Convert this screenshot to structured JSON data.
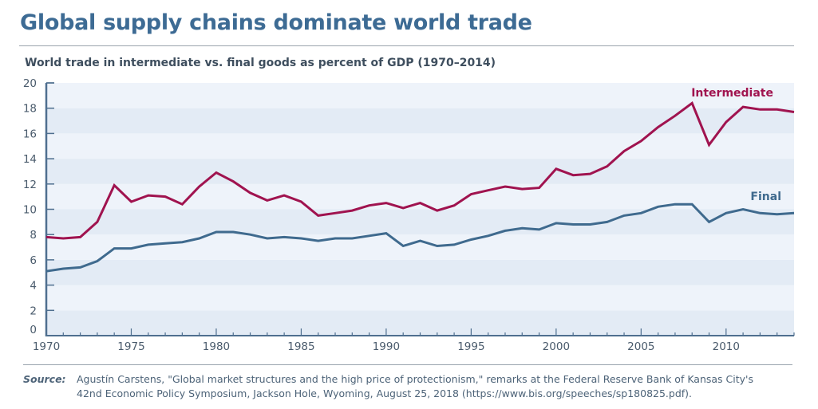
{
  "header": {
    "title": "Global supply chains dominate world trade",
    "subtitle": "World trade in intermediate vs. final goods as percent of GDP (1970–2014)"
  },
  "colors": {
    "title": "#3d6b94",
    "intermediate": "#a0134f",
    "final": "#3f6a8e",
    "axis": "#4f6f8f",
    "band_light": "#eef3fa",
    "band_dark": "#e3ebf5"
  },
  "footer": {
    "source_label": "Source:",
    "source_line1": "Agustín Carstens, \"Global market structures and the high price of protectionism,\" remarks at the Federal Reserve Bank of Kansas City's",
    "source_line2": "42nd Economic Policy Symposium, Jackson Hole, Wyoming, August 25, 2018 (https://www.bis.org/speeches/sp180825.pdf)."
  },
  "chart_data": {
    "type": "line",
    "title": "World trade in intermediate vs. final goods as percent of GDP (1970–2014)",
    "xlabel": "",
    "ylabel": "",
    "xlim": [
      1970,
      2014
    ],
    "ylim": [
      0,
      20
    ],
    "x_ticks": [
      1970,
      1975,
      1980,
      1985,
      1990,
      1995,
      2000,
      2005,
      2010
    ],
    "y_ticks": [
      0,
      2,
      4,
      6,
      8,
      10,
      12,
      14,
      16,
      18,
      20
    ],
    "grid": "alternating horizontal bands",
    "legend": "inline labels at right end of lines",
    "x": [
      1970,
      1971,
      1972,
      1973,
      1974,
      1975,
      1976,
      1977,
      1978,
      1979,
      1980,
      1981,
      1982,
      1983,
      1984,
      1985,
      1986,
      1987,
      1988,
      1989,
      1990,
      1991,
      1992,
      1993,
      1994,
      1995,
      1996,
      1997,
      1998,
      1999,
      2000,
      2001,
      2002,
      2003,
      2004,
      2005,
      2006,
      2007,
      2008,
      2009,
      2010,
      2011,
      2012,
      2013,
      2014
    ],
    "series": [
      {
        "name": "Intermediate",
        "values": [
          7.8,
          7.7,
          7.8,
          9.0,
          11.9,
          10.6,
          11.1,
          11.0,
          10.4,
          11.8,
          12.9,
          12.2,
          11.3,
          10.7,
          11.1,
          10.6,
          9.5,
          9.7,
          9.9,
          10.3,
          10.5,
          10.1,
          10.5,
          9.9,
          10.3,
          11.2,
          11.5,
          11.8,
          11.6,
          11.7,
          13.2,
          12.7,
          12.8,
          13.4,
          14.6,
          15.4,
          16.5,
          17.4,
          18.4,
          15.1,
          16.9,
          18.1,
          17.9,
          17.9,
          17.7
        ]
      },
      {
        "name": "Final",
        "values": [
          5.1,
          5.3,
          5.4,
          5.9,
          6.9,
          6.9,
          7.2,
          7.3,
          7.4,
          7.7,
          8.2,
          8.2,
          8.0,
          7.7,
          7.8,
          7.7,
          7.5,
          7.7,
          7.7,
          7.9,
          8.1,
          7.1,
          7.5,
          7.1,
          7.2,
          7.6,
          7.9,
          8.3,
          8.5,
          8.4,
          8.9,
          8.8,
          8.8,
          9.0,
          9.5,
          9.7,
          10.2,
          10.4,
          10.4,
          9.0,
          9.7,
          10.0,
          9.7,
          9.6,
          9.7
        ]
      }
    ]
  }
}
